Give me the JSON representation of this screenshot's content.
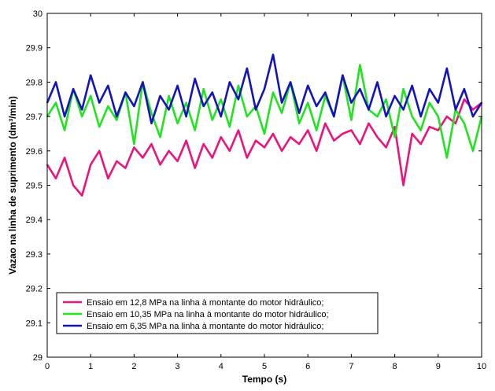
{
  "chart_data": {
    "type": "line",
    "title": "",
    "xlabel": "Tempo (s)",
    "ylabel": "Vazao na linha de suprimento (dm³/min)",
    "xlim": [
      0,
      10
    ],
    "ylim": [
      29,
      30
    ],
    "xticks": [
      0,
      1,
      2,
      3,
      4,
      5,
      6,
      7,
      8,
      9,
      10
    ],
    "yticks": [
      29,
      29.1,
      29.2,
      29.3,
      29.4,
      29.5,
      29.6,
      29.7,
      29.8,
      29.9,
      30
    ],
    "grid": false,
    "legend_position": "bottom-left",
    "series": [
      {
        "name": "Ensaio em 12,8 MPa na linha à montante do motor hidráulico;",
        "color": "#e8157d",
        "x": [
          0,
          0.2,
          0.4,
          0.6,
          0.8,
          1.0,
          1.2,
          1.4,
          1.6,
          1.8,
          2.0,
          2.2,
          2.4,
          2.6,
          2.8,
          3.0,
          3.2,
          3.4,
          3.6,
          3.8,
          4.0,
          4.2,
          4.4,
          4.6,
          4.8,
          5.0,
          5.2,
          5.4,
          5.6,
          5.8,
          6.0,
          6.2,
          6.4,
          6.6,
          6.8,
          7.0,
          7.2,
          7.4,
          7.6,
          7.8,
          8.0,
          8.2,
          8.4,
          8.6,
          8.8,
          9.0,
          9.2,
          9.4,
          9.6,
          9.8,
          10.0
        ],
        "values": [
          29.56,
          29.52,
          29.58,
          29.5,
          29.47,
          29.56,
          29.6,
          29.52,
          29.57,
          29.55,
          29.61,
          29.58,
          29.62,
          29.56,
          29.6,
          29.57,
          29.63,
          29.55,
          29.62,
          29.58,
          29.64,
          29.6,
          29.66,
          29.58,
          29.63,
          29.61,
          29.65,
          29.6,
          29.64,
          29.62,
          29.66,
          29.6,
          29.68,
          29.63,
          29.65,
          29.66,
          29.62,
          29.68,
          29.64,
          29.61,
          29.67,
          29.5,
          29.65,
          29.62,
          29.67,
          29.66,
          29.7,
          29.68,
          29.75,
          29.72,
          29.74
        ]
      },
      {
        "name": "Ensaio em 10,35 MPa na linha à montante do motor hidráulico;",
        "color": "#22e322",
        "x": [
          0,
          0.2,
          0.4,
          0.6,
          0.8,
          1.0,
          1.2,
          1.4,
          1.6,
          1.8,
          2.0,
          2.2,
          2.4,
          2.6,
          2.8,
          3.0,
          3.2,
          3.4,
          3.6,
          3.8,
          4.0,
          4.2,
          4.4,
          4.6,
          4.8,
          5.0,
          5.2,
          5.4,
          5.6,
          5.8,
          6.0,
          6.2,
          6.4,
          6.6,
          6.8,
          7.0,
          7.2,
          7.4,
          7.6,
          7.8,
          8.0,
          8.2,
          8.4,
          8.6,
          8.8,
          9.0,
          9.2,
          9.4,
          9.6,
          9.8,
          10.0
        ],
        "values": [
          29.7,
          29.74,
          29.66,
          29.78,
          29.7,
          29.76,
          29.67,
          29.73,
          29.69,
          29.77,
          29.62,
          29.8,
          29.71,
          29.64,
          29.76,
          29.68,
          29.74,
          29.66,
          29.78,
          29.69,
          29.75,
          29.67,
          29.79,
          29.7,
          29.73,
          29.65,
          29.77,
          29.71,
          29.8,
          29.68,
          29.74,
          29.66,
          29.76,
          29.7,
          29.82,
          29.69,
          29.85,
          29.72,
          29.7,
          29.75,
          29.64,
          29.78,
          29.7,
          29.66,
          29.74,
          29.7,
          29.58,
          29.72,
          29.68,
          29.6,
          29.7
        ]
      },
      {
        "name": "Ensaio em 6,35 MPa na linha à montante do motor hidráulico;",
        "color": "#1414b8",
        "x": [
          0,
          0.2,
          0.4,
          0.6,
          0.8,
          1.0,
          1.2,
          1.4,
          1.6,
          1.8,
          2.0,
          2.2,
          2.4,
          2.6,
          2.8,
          3.0,
          3.2,
          3.4,
          3.6,
          3.8,
          4.0,
          4.2,
          4.4,
          4.6,
          4.8,
          5.0,
          5.2,
          5.4,
          5.6,
          5.8,
          6.0,
          6.2,
          6.4,
          6.6,
          6.8,
          7.0,
          7.2,
          7.4,
          7.6,
          7.8,
          8.0,
          8.2,
          8.4,
          8.6,
          8.8,
          9.0,
          9.2,
          9.4,
          9.6,
          9.8,
          10.0
        ],
        "values": [
          29.74,
          29.8,
          29.7,
          29.78,
          29.72,
          29.82,
          29.74,
          29.79,
          29.7,
          29.77,
          29.73,
          29.8,
          29.68,
          29.76,
          29.72,
          29.79,
          29.7,
          29.81,
          29.73,
          29.77,
          29.7,
          29.8,
          29.75,
          29.84,
          29.72,
          29.78,
          29.88,
          29.74,
          29.8,
          29.71,
          29.79,
          29.73,
          29.77,
          29.7,
          29.82,
          29.74,
          29.78,
          29.72,
          29.8,
          29.7,
          29.76,
          29.72,
          29.79,
          29.7,
          29.78,
          29.74,
          29.84,
          29.72,
          29.78,
          29.7,
          29.74
        ]
      }
    ]
  }
}
